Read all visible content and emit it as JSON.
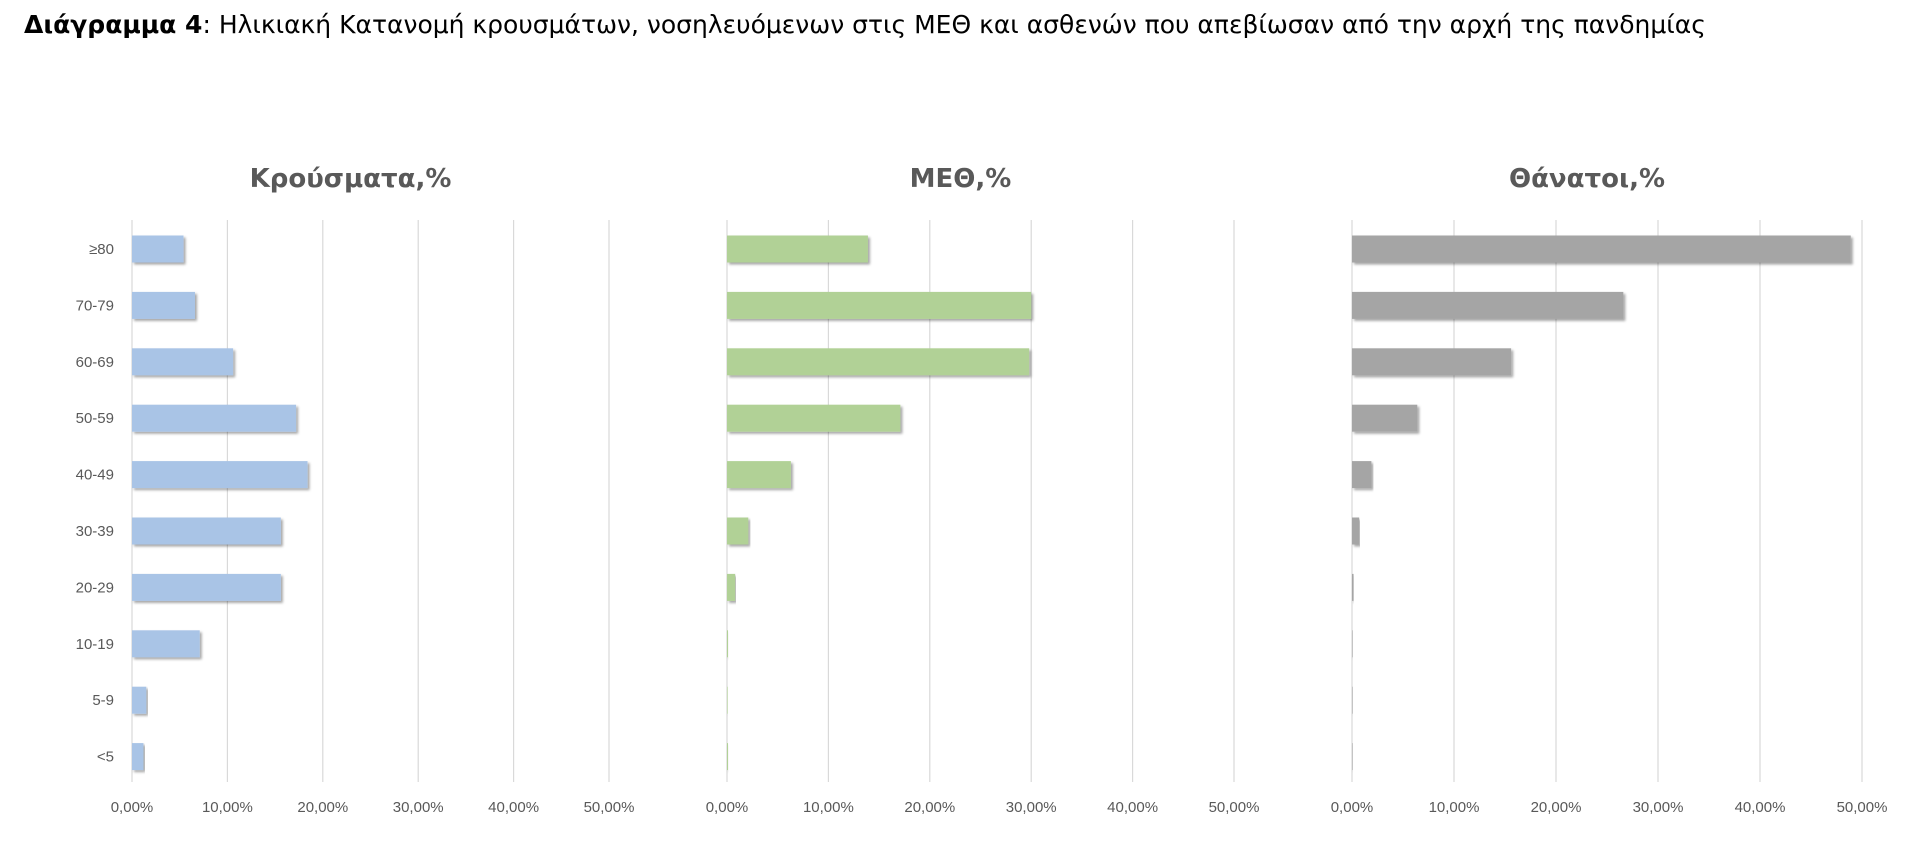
{
  "caption": {
    "label": "Διάγραμμα 4",
    "separator": ":",
    "text": " Ηλικιακή Κατανομή κρουσμάτων, νοσηλευόμενων στις ΜΕΘ και ασθενών που απεβίωσαν από την αρχή της πανδημίας"
  },
  "chart_data": [
    {
      "type": "bar",
      "orientation": "horizontal",
      "title": "Κρούσματα,%",
      "categories": [
        "≥80",
        "70-79",
        "60-69",
        "50-59",
        "40-49",
        "30-39",
        "20-29",
        "10-19",
        "5-9",
        "<5"
      ],
      "values": [
        5.4,
        6.6,
        10.6,
        17.2,
        18.4,
        15.6,
        15.6,
        7.1,
        1.5,
        1.2
      ],
      "unit": "%",
      "xlim": [
        0,
        50
      ],
      "xticks": [
        "0,00%",
        "10,00%",
        "20,00%",
        "30,00%",
        "40,00%",
        "50,00%"
      ],
      "grid": true,
      "legend": "none",
      "color": "#a9c4e6"
    },
    {
      "type": "bar",
      "orientation": "horizontal",
      "title": "ΜΕΘ,%",
      "categories": [
        "≥80",
        "70-79",
        "60-69",
        "50-59",
        "40-49",
        "30-39",
        "20-29",
        "10-19",
        "5-9",
        "<5"
      ],
      "values": [
        13.9,
        30.0,
        29.8,
        17.1,
        6.3,
        2.1,
        0.8,
        0.1,
        0.0,
        0.1
      ],
      "unit": "%",
      "xlim": [
        0,
        50
      ],
      "xticks": [
        "0,00%",
        "10,00%",
        "20,00%",
        "30,00%",
        "40,00%",
        "50,00%"
      ],
      "grid": true,
      "legend": "none",
      "color": "#b1d196"
    },
    {
      "type": "bar",
      "orientation": "horizontal",
      "title": "Θάνατοι,%",
      "categories": [
        "≥80",
        "70-79",
        "60-69",
        "50-59",
        "40-49",
        "30-39",
        "20-29",
        "10-19",
        "5-9",
        "<5"
      ],
      "values": [
        48.9,
        26.6,
        15.6,
        6.4,
        1.9,
        0.7,
        0.15,
        0.05,
        0.0,
        0.05
      ],
      "unit": "%",
      "xlim": [
        0,
        50
      ],
      "xticks": [
        "0,00%",
        "10,00%",
        "20,00%",
        "30,00%",
        "40,00%",
        "50,00%"
      ],
      "grid": true,
      "legend": "none",
      "color": "#a5a5a5"
    }
  ]
}
